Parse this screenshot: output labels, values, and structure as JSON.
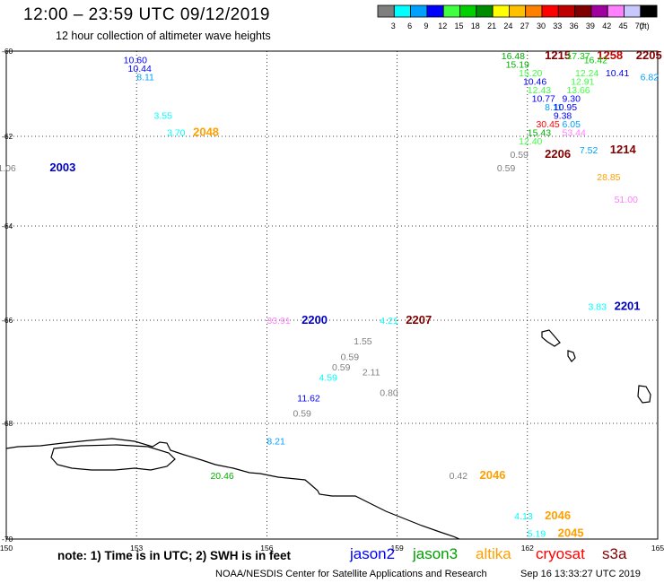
{
  "header": {
    "title": "12:00 – 23:59 UTC 09/12/2019",
    "subtitle": "12 hour collection of altimeter wave heights"
  },
  "scale": {
    "unit": "(ft)",
    "bins": [
      {
        "color": "#7f7f7f",
        "label": "3"
      },
      {
        "color": "#00ffff",
        "label": "6"
      },
      {
        "color": "#00a0ff",
        "label": "9"
      },
      {
        "color": "#0000ff",
        "label": "12"
      },
      {
        "color": "#40ff40",
        "label": "15"
      },
      {
        "color": "#00d000",
        "label": "18"
      },
      {
        "color": "#008c00",
        "label": "21"
      },
      {
        "color": "#ffff00",
        "label": "24"
      },
      {
        "color": "#ffc000",
        "label": "27"
      },
      {
        "color": "#ff8000",
        "label": "30"
      },
      {
        "color": "#ff0000",
        "label": "33"
      },
      {
        "color": "#c00000",
        "label": "36"
      },
      {
        "color": "#800000",
        "label": "39"
      },
      {
        "color": "#a000a0",
        "label": "42"
      },
      {
        "color": "#ff80ff",
        "label": "45"
      },
      {
        "color": "#c8c8ff",
        "label": "70"
      },
      {
        "color": "#000000",
        "label": ""
      }
    ]
  },
  "axes": {
    "lon_ticks": [
      "150",
      "153",
      "156",
      "159",
      "162",
      "165"
    ],
    "lat_ticks": [
      "-60",
      "-62",
      "-64",
      "-66",
      "-68",
      "-70"
    ]
  },
  "observations": [
    {
      "text": "10.60",
      "lon": 152.7,
      "lat": -60.2,
      "color": "#0000ff"
    },
    {
      "text": "10.44",
      "lon": 152.8,
      "lat": -60.4,
      "color": "#0000ff"
    },
    {
      "text": "8.11",
      "lon": 153.0,
      "lat": -60.6,
      "color": "#00a0ff"
    },
    {
      "text": "3.55",
      "lon": 153.4,
      "lat": -61.5,
      "color": "#00ffff"
    },
    {
      "text": "3.70",
      "lon": 153.7,
      "lat": -61.9,
      "color": "#00ffff"
    },
    {
      "text": "2048",
      "lon": 154.3,
      "lat": -61.9,
      "color": "#ffa000",
      "time": true
    },
    {
      "text": "1.06",
      "lon": 149.8,
      "lat": -62.7,
      "color": "#7f7f7f"
    },
    {
      "text": "2003",
      "lon": 151.0,
      "lat": -62.7,
      "color": "#0000c0",
      "time": true
    },
    {
      "text": "16.48",
      "lon": 161.4,
      "lat": -60.1,
      "color": "#00b000"
    },
    {
      "text": "1215",
      "lon": 162.4,
      "lat": -60.1,
      "color": "#800000",
      "time": true
    },
    {
      "text": "17.37",
      "lon": 162.9,
      "lat": -60.1,
      "color": "#00d000"
    },
    {
      "text": "1258",
      "lon": 163.6,
      "lat": -60.1,
      "color": "#c00000",
      "time": true
    },
    {
      "text": "2205",
      "lon": 164.5,
      "lat": -60.1,
      "color": "#800000",
      "time": true
    },
    {
      "text": "16.42",
      "lon": 163.3,
      "lat": -60.2,
      "color": "#00d000"
    },
    {
      "text": "15.19",
      "lon": 161.5,
      "lat": -60.3,
      "color": "#00b000"
    },
    {
      "text": "15.20",
      "lon": 161.8,
      "lat": -60.5,
      "color": "#40ff40"
    },
    {
      "text": "12.24",
      "lon": 163.1,
      "lat": -60.5,
      "color": "#40ff40"
    },
    {
      "text": "10.41",
      "lon": 163.8,
      "lat": -60.5,
      "color": "#0000ff"
    },
    {
      "text": "10.46",
      "lon": 161.9,
      "lat": -60.7,
      "color": "#0000ff"
    },
    {
      "text": "12.91",
      "lon": 163.0,
      "lat": -60.7,
      "color": "#40ff40"
    },
    {
      "text": "6.82",
      "lon": 164.6,
      "lat": -60.6,
      "color": "#00a0ff"
    },
    {
      "text": "12.43",
      "lon": 162.0,
      "lat": -60.9,
      "color": "#40ff40"
    },
    {
      "text": "13.66",
      "lon": 162.9,
      "lat": -60.9,
      "color": "#40ff40"
    },
    {
      "text": "10.77",
      "lon": 162.1,
      "lat": -61.1,
      "color": "#0000ff"
    },
    {
      "text": "9.30",
      "lon": 162.8,
      "lat": -61.1,
      "color": "#0000ff"
    },
    {
      "text": "8.11",
      "lon": 162.4,
      "lat": -61.3,
      "color": "#00a0ff"
    },
    {
      "text": "10.95",
      "lon": 162.6,
      "lat": -61.3,
      "color": "#0000ff"
    },
    {
      "text": "9.38",
      "lon": 162.6,
      "lat": -61.5,
      "color": "#0000ff"
    },
    {
      "text": "30.45",
      "lon": 162.2,
      "lat": -61.7,
      "color": "#ff0000"
    },
    {
      "text": "6.05",
      "lon": 162.8,
      "lat": -61.7,
      "color": "#00a0ff"
    },
    {
      "text": "15.43",
      "lon": 162.0,
      "lat": -61.9,
      "color": "#00b000"
    },
    {
      "text": "53.44",
      "lon": 162.8,
      "lat": -61.9,
      "color": "#ff80ff"
    },
    {
      "text": "12.40",
      "lon": 161.8,
      "lat": -62.1,
      "color": "#40ff40"
    },
    {
      "text": "7.52",
      "lon": 163.2,
      "lat": -62.3,
      "color": "#00a0ff"
    },
    {
      "text": "1214",
      "lon": 163.9,
      "lat": -62.3,
      "color": "#800000",
      "time": true
    },
    {
      "text": "0.59",
      "lon": 161.6,
      "lat": -62.4,
      "color": "#7f7f7f"
    },
    {
      "text": "2206",
      "lon": 162.4,
      "lat": -62.4,
      "color": "#800000",
      "time": true
    },
    {
      "text": "0.59",
      "lon": 161.3,
      "lat": -62.7,
      "color": "#7f7f7f"
    },
    {
      "text": "28.85",
      "lon": 163.6,
      "lat": -62.9,
      "color": "#ffa000"
    },
    {
      "text": "51.00",
      "lon": 164.0,
      "lat": -63.4,
      "color": "#ff80ff"
    },
    {
      "text": "3.83",
      "lon": 163.4,
      "lat": -65.7,
      "color": "#00ffff"
    },
    {
      "text": "2201",
      "lon": 164.0,
      "lat": -65.7,
      "color": "#0000c0",
      "time": true
    },
    {
      "text": "33.91",
      "lon": 156.0,
      "lat": -66.0,
      "color": "#ff80ff"
    },
    {
      "text": "2200",
      "lon": 156.8,
      "lat": -66.0,
      "color": "#0000c0",
      "time": true
    },
    {
      "text": "4.21",
      "lon": 158.6,
      "lat": -66.0,
      "color": "#00ffff"
    },
    {
      "text": "2207",
      "lon": 159.2,
      "lat": -66.0,
      "color": "#800000",
      "time": true
    },
    {
      "text": "1.55",
      "lon": 158.0,
      "lat": -66.4,
      "color": "#7f7f7f"
    },
    {
      "text": "0.59",
      "lon": 157.7,
      "lat": -66.7,
      "color": "#7f7f7f"
    },
    {
      "text": "0.59",
      "lon": 157.5,
      "lat": -66.9,
      "color": "#7f7f7f"
    },
    {
      "text": "2.11",
      "lon": 158.2,
      "lat": -67.0,
      "color": "#7f7f7f"
    },
    {
      "text": "4.59",
      "lon": 157.2,
      "lat": -67.1,
      "color": "#00ffff"
    },
    {
      "text": "0.80",
      "lon": 158.6,
      "lat": -67.4,
      "color": "#7f7f7f"
    },
    {
      "text": "11.62",
      "lon": 156.7,
      "lat": -67.5,
      "color": "#0000ff"
    },
    {
      "text": "0.59",
      "lon": 156.6,
      "lat": -67.8,
      "color": "#7f7f7f"
    },
    {
      "text": "8.21",
      "lon": 156.0,
      "lat": -68.3,
      "color": "#00a0ff"
    },
    {
      "text": "20.46",
      "lon": 154.7,
      "lat": -68.9,
      "color": "#00b000"
    },
    {
      "text": "0.42",
      "lon": 160.2,
      "lat": -68.9,
      "color": "#7f7f7f"
    },
    {
      "text": "2046",
      "lon": 160.9,
      "lat": -68.9,
      "color": "#ffa000",
      "time": true
    },
    {
      "text": "4.13",
      "lon": 161.7,
      "lat": -69.6,
      "color": "#00ffff"
    },
    {
      "text": "2046",
      "lon": 162.4,
      "lat": -69.6,
      "color": "#ffa000",
      "time": true
    },
    {
      "text": "5.19",
      "lon": 162.0,
      "lat": -69.9,
      "color": "#00ffff"
    },
    {
      "text": "2045",
      "lon": 162.7,
      "lat": -69.9,
      "color": "#ffa000",
      "time": true
    }
  ],
  "footer": {
    "note": "note:  1) Time is in UTC;  2) SWH is in feet",
    "satellites": [
      {
        "name": "jason2",
        "color": "#0000ff"
      },
      {
        "name": "jason3",
        "color": "#00a000"
      },
      {
        "name": "altika",
        "color": "#ffa000"
      },
      {
        "name": "cryosat",
        "color": "#ff0000"
      },
      {
        "name": "s3a",
        "color": "#800000"
      }
    ],
    "credit": "NOAA/NESDIS Center for Satellite Applications and Research",
    "stamp": "Sep 16 13:33:27 UTC 2019"
  }
}
